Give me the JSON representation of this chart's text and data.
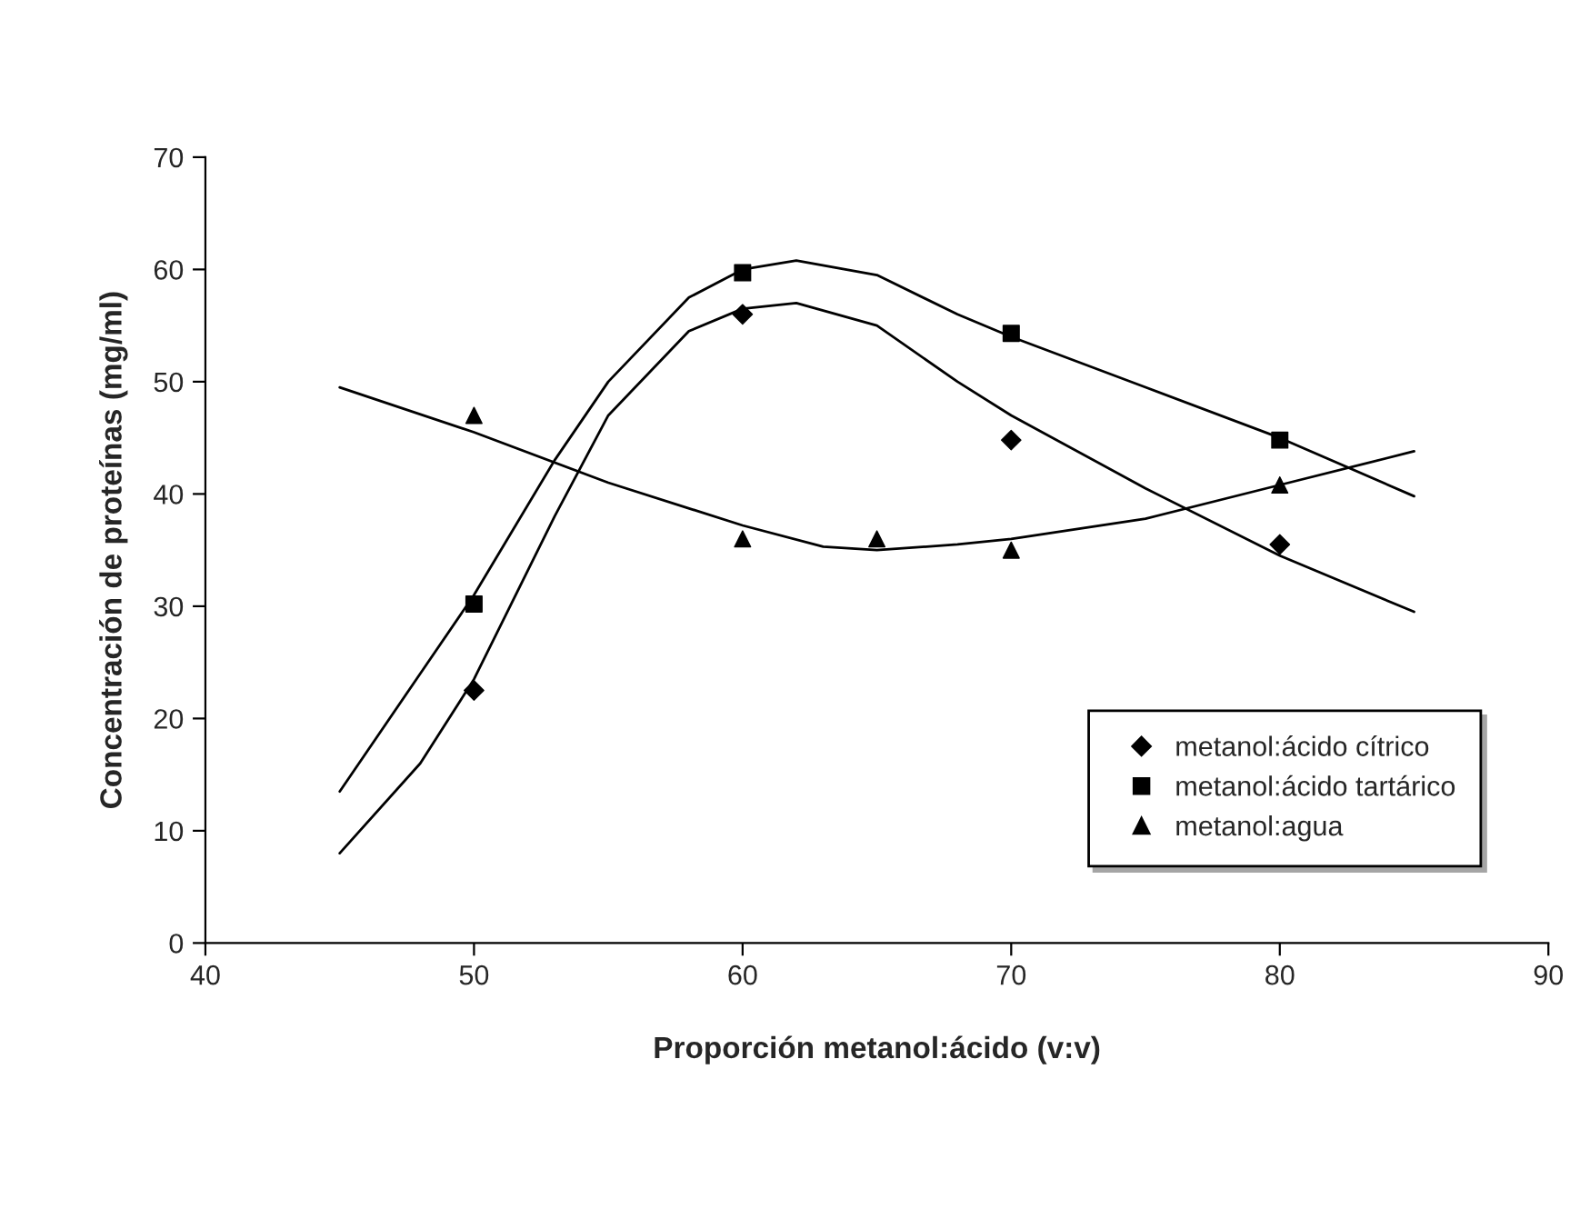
{
  "chart_data": {
    "type": "scatter",
    "xlabel": "Proporción metanol:ácido (v:v)",
    "ylabel": "Concentración de proteínas (mg/ml)",
    "xlim": [
      40,
      90
    ],
    "xticks": [
      40,
      50,
      60,
      70,
      80,
      90
    ],
    "ylim": [
      0,
      70
    ],
    "yticks": [
      0,
      10,
      20,
      30,
      40,
      50,
      60,
      70
    ],
    "grid": false,
    "legend": "bottom right",
    "series": [
      {
        "name": "metanol:ácido cítrico",
        "marker": "diamond",
        "color": "#000000",
        "x": [
          50,
          60,
          70,
          80
        ],
        "values": [
          22.5,
          56,
          44.8,
          35.5
        ]
      },
      {
        "name": "metanol:ácido tartárico",
        "marker": "square",
        "color": "#000000",
        "x": [
          50,
          60,
          70,
          80
        ],
        "values": [
          30.2,
          59.7,
          54.3,
          44.8
        ]
      },
      {
        "name": "metanol:agua",
        "marker": "triangle",
        "color": "#000000",
        "x": [
          50,
          60,
          65,
          70,
          80
        ],
        "values": [
          47,
          36,
          36,
          35,
          40.8
        ]
      },
      {
        "type": "line",
        "marker": "none",
        "color": "#000000",
        "x": [
          45,
          48,
          50,
          53,
          55,
          58,
          60,
          62,
          65,
          68,
          70,
          75,
          80,
          85
        ],
        "values": [
          8,
          16,
          23.5,
          38,
          47,
          54.5,
          56.5,
          57,
          55,
          50,
          47,
          40.5,
          34.5,
          29.5
        ]
      },
      {
        "type": "line",
        "marker": "none",
        "color": "#000000",
        "x": [
          45,
          48,
          50,
          53,
          55,
          58,
          60,
          62,
          65,
          68,
          70,
          75,
          80,
          85
        ],
        "values": [
          13.5,
          24,
          31,
          43,
          50,
          57.5,
          60,
          60.8,
          59.5,
          56,
          54,
          49.5,
          45,
          39.8
        ]
      },
      {
        "type": "line",
        "marker": "none",
        "color": "#000000",
        "x": [
          45,
          50,
          55,
          60,
          63,
          65,
          68,
          70,
          75,
          80,
          85
        ],
        "values": [
          49.5,
          45.5,
          41,
          37.2,
          35.3,
          35,
          35.5,
          36,
          37.8,
          40.8,
          43.8
        ]
      }
    ]
  }
}
